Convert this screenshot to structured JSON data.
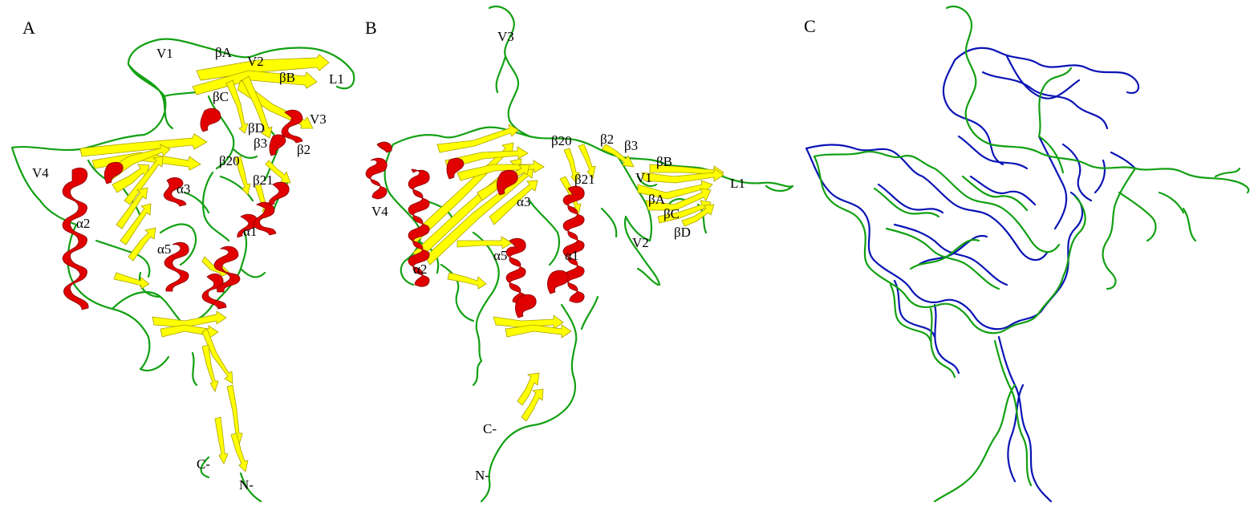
{
  "panels": {
    "a": {
      "letter": "A",
      "labels": {
        "v1": "V1",
        "bA": "βA",
        "v2": "V2",
        "bB": "βB",
        "l1": "L1",
        "bC": "βC",
        "v3": "V3",
        "bD": "βD",
        "b3": "β3",
        "b2": "β2",
        "b20": "β20",
        "b21": "β21",
        "v4": "V4",
        "a3": "α3",
        "a2": "α2",
        "a1": "α1",
        "a5": "α5",
        "cterm": "C-",
        "nterm": "N-"
      }
    },
    "b": {
      "letter": "B",
      "labels": {
        "v3": "V3",
        "b20": "β20",
        "b2": "β2",
        "b3": "β3",
        "bB": "βB",
        "v1": "V1",
        "b21": "β21",
        "l1": "L1",
        "v4": "V4",
        "a3": "α3",
        "bA": "βA",
        "bC": "βC",
        "bD": "βD",
        "v2": "V2",
        "a5": "α5",
        "a1": "α1",
        "a2": "α2",
        "cterm": "C-",
        "nterm": "N-"
      }
    },
    "c": {
      "letter": "C"
    }
  },
  "colors": {
    "coil": "#12a012",
    "sheet": "#ffff00",
    "helix": "#e00000",
    "overlay_coil": "#0a14b4",
    "background": "#ffffff"
  }
}
